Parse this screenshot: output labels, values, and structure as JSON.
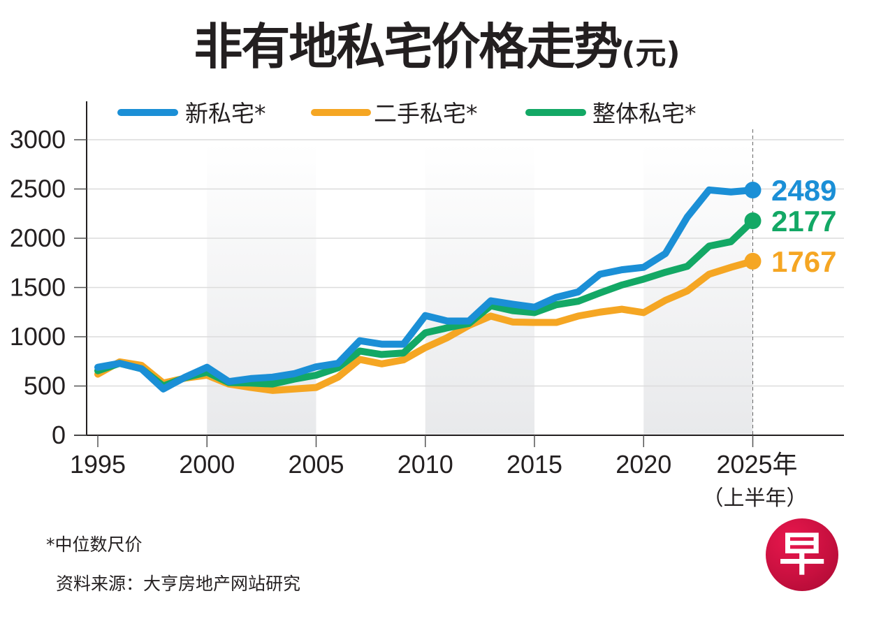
{
  "title": {
    "main": "非有地私宅价格走势",
    "unit": "(元)"
  },
  "footnote": "*中位数尺价",
  "source": "资料来源：大亨房地产网站研究",
  "logo": {
    "glyph": "早",
    "icon": "zaobao-logo-icon",
    "color": "#d4124a"
  },
  "chart_data": {
    "type": "line",
    "title": "非有地私宅价格走势(元)",
    "xlabel": "",
    "ylabel": "",
    "x": [
      1995,
      1996,
      1997,
      1998,
      1999,
      2000,
      2001,
      2002,
      2003,
      2004,
      2005,
      2006,
      2007,
      2008,
      2009,
      2010,
      2011,
      2012,
      2013,
      2014,
      2015,
      2016,
      2017,
      2018,
      2019,
      2020,
      2021,
      2022,
      2023,
      2024,
      2025
    ],
    "xlim": [
      1995,
      2028
    ],
    "ylim": [
      0,
      3000
    ],
    "yticks": [
      "0",
      "500",
      "1000",
      "1500",
      "2000",
      "2500",
      "3000"
    ],
    "ytick_values": [
      0,
      500,
      1000,
      1500,
      2000,
      2500,
      3000
    ],
    "xticks": [
      "1995",
      "2000",
      "2005",
      "2010",
      "2015",
      "2020",
      "2025年"
    ],
    "xtick_values": [
      1995,
      2000,
      2005,
      2010,
      2015,
      2020,
      2025
    ],
    "xtick_sublabel": "（上半年）",
    "grid": true,
    "shaded_periods": [
      [
        2000,
        2005
      ],
      [
        2010,
        2015
      ],
      [
        2020,
        2025
      ]
    ],
    "legend_position": "top",
    "series": [
      {
        "name": "新私宅*",
        "color": "#1b8fd6",
        "values": [
          690,
          730,
          675,
          470,
          590,
          690,
          545,
          575,
          590,
          625,
          695,
          730,
          960,
          925,
          925,
          1215,
          1160,
          1160,
          1365,
          1330,
          1300,
          1400,
          1455,
          1635,
          1680,
          1705,
          1845,
          2215,
          2490,
          2470,
          2489
        ],
        "end_label": "2489"
      },
      {
        "name": "二手私宅*",
        "color": "#f5a623",
        "values": [
          620,
          745,
          710,
          530,
          580,
          610,
          520,
          485,
          455,
          470,
          485,
          590,
          770,
          725,
          765,
          890,
          990,
          1115,
          1210,
          1150,
          1145,
          1145,
          1210,
          1250,
          1280,
          1245,
          1370,
          1465,
          1635,
          1705,
          1767
        ],
        "end_label": "1767"
      },
      {
        "name": "整体私宅*",
        "color": "#13a865",
        "values": [
          655,
          730,
          675,
          500,
          585,
          640,
          535,
          530,
          520,
          570,
          610,
          685,
          855,
          820,
          835,
          1040,
          1090,
          1135,
          1315,
          1265,
          1245,
          1325,
          1360,
          1445,
          1525,
          1585,
          1655,
          1715,
          1920,
          1965,
          2177
        ],
        "end_label": "2177"
      }
    ]
  }
}
